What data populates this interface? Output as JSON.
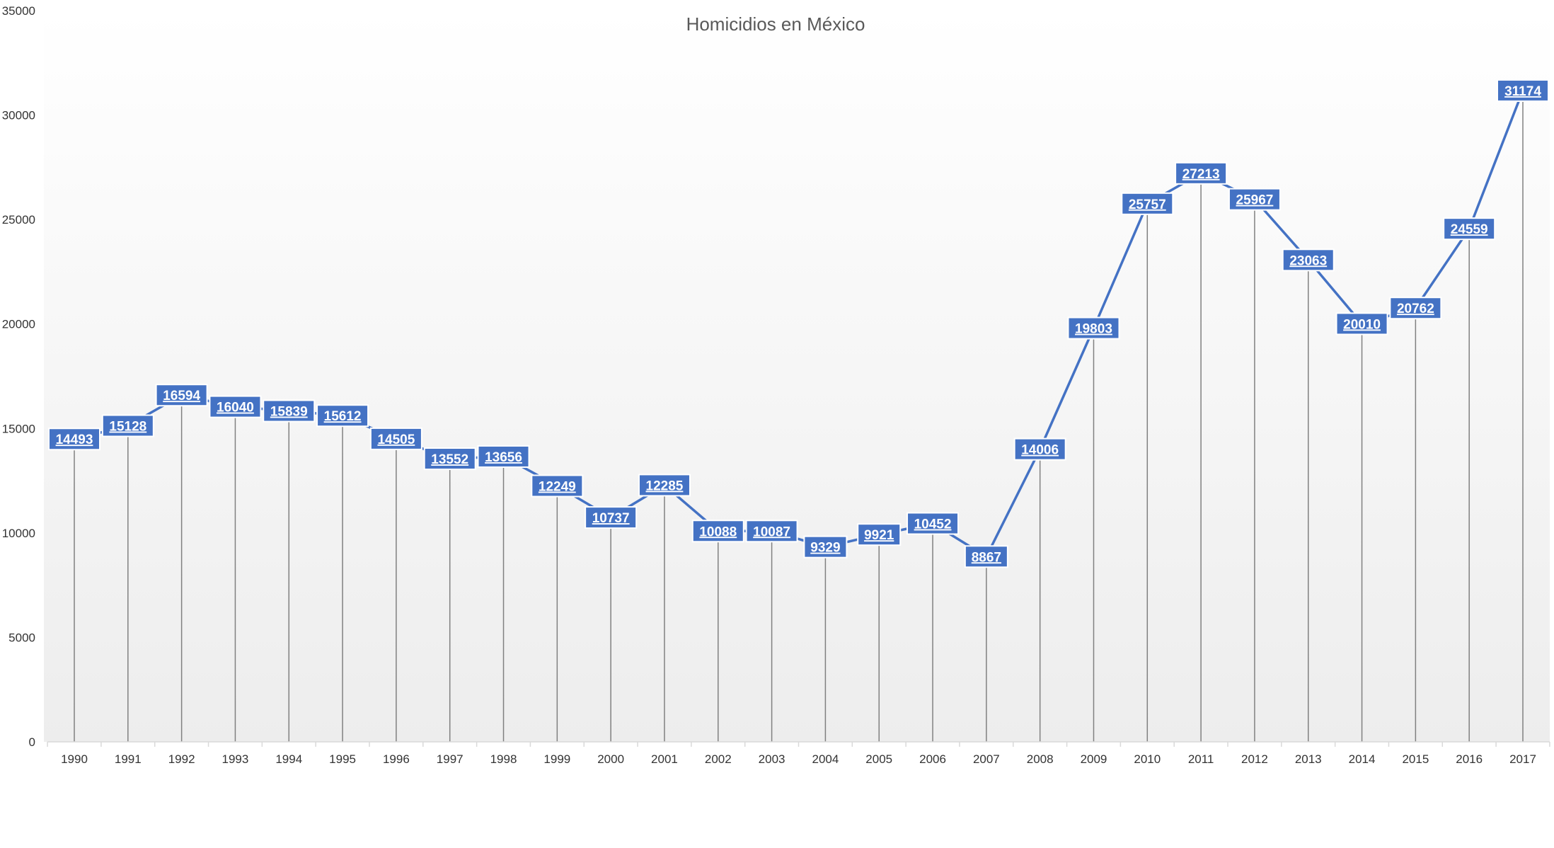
{
  "chart_data": {
    "type": "line",
    "title": "Homicidios en México",
    "xlabel": "",
    "ylabel": "",
    "ylim": [
      0,
      35000
    ],
    "y_ticks": [
      "0",
      "5000",
      "10000",
      "15000",
      "20000",
      "25000",
      "30000",
      "35000"
    ],
    "grid": false,
    "drop_lines": true,
    "data_labels": true,
    "legend": "none",
    "categories": [
      "1990",
      "1991",
      "1992",
      "1993",
      "1994",
      "1995",
      "1996",
      "1997",
      "1998",
      "1999",
      "2000",
      "2001",
      "2002",
      "2003",
      "2004",
      "2005",
      "2006",
      "2007",
      "2008",
      "2009",
      "2010",
      "2011",
      "2012",
      "2013",
      "2014",
      "2015",
      "2016",
      "2017"
    ],
    "series": [
      {
        "values": [
          14493,
          15128,
          16594,
          16040,
          15839,
          15612,
          14505,
          13552,
          13656,
          12249,
          10737,
          12285,
          10088,
          10087,
          9329,
          9921,
          10452,
          8867,
          14006,
          19803,
          25757,
          27213,
          25967,
          23063,
          20010,
          20762,
          24559,
          31174
        ]
      }
    ],
    "colors": {
      "line": "#4472C4",
      "label_fill": "#4472C4",
      "label_text": "#ffffff",
      "drop_line": "#808080",
      "title": "#595959",
      "axis_text": "#333333",
      "plot_gradient_top": "#ffffff",
      "plot_gradient_bottom": "#ededed"
    }
  }
}
